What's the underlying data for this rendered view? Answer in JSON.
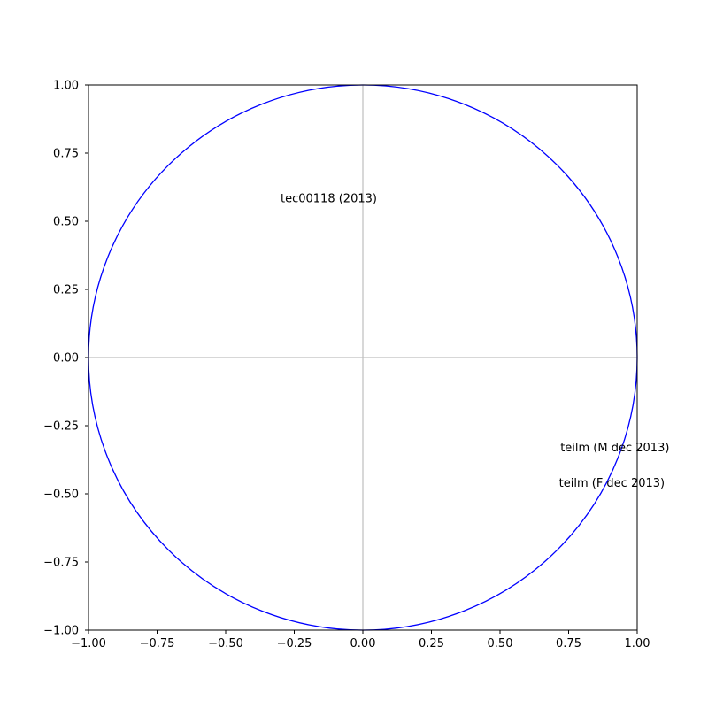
{
  "chart_data": {
    "type": "scatter",
    "title": "",
    "xlabel": "",
    "ylabel": "",
    "xlim": [
      -1.0,
      1.0
    ],
    "ylim": [
      -1.0,
      1.0
    ],
    "grid": false,
    "legend": "none",
    "unit_circle": {
      "radius": 1.0,
      "color": "#0000ff"
    },
    "axis_lines": {
      "color": "#bfbfbf"
    },
    "x_ticks": [
      -1.0,
      -0.75,
      -0.5,
      -0.25,
      0.0,
      0.25,
      0.5,
      0.75,
      1.0
    ],
    "x_tick_labels": [
      "−1.00",
      "−0.75",
      "−0.50",
      "−0.25",
      "0.00",
      "0.25",
      "0.50",
      "0.75",
      "1.00"
    ],
    "y_ticks": [
      -1.0,
      -0.75,
      -0.5,
      -0.25,
      0.0,
      0.25,
      0.5,
      0.75,
      1.0
    ],
    "y_tick_labels": [
      "−1.00",
      "−0.75",
      "−0.50",
      "−0.25",
      "0.00",
      "0.25",
      "0.50",
      "0.75",
      "1.00"
    ],
    "points": [
      {
        "label": "tec00118 (2013)",
        "x": -0.3,
        "y": 0.585
      },
      {
        "label": "teilm (M dec 2013)",
        "x": 0.72,
        "y": -0.33
      },
      {
        "label": "teilm (F dec 2013)",
        "x": 0.715,
        "y": -0.46
      }
    ]
  }
}
